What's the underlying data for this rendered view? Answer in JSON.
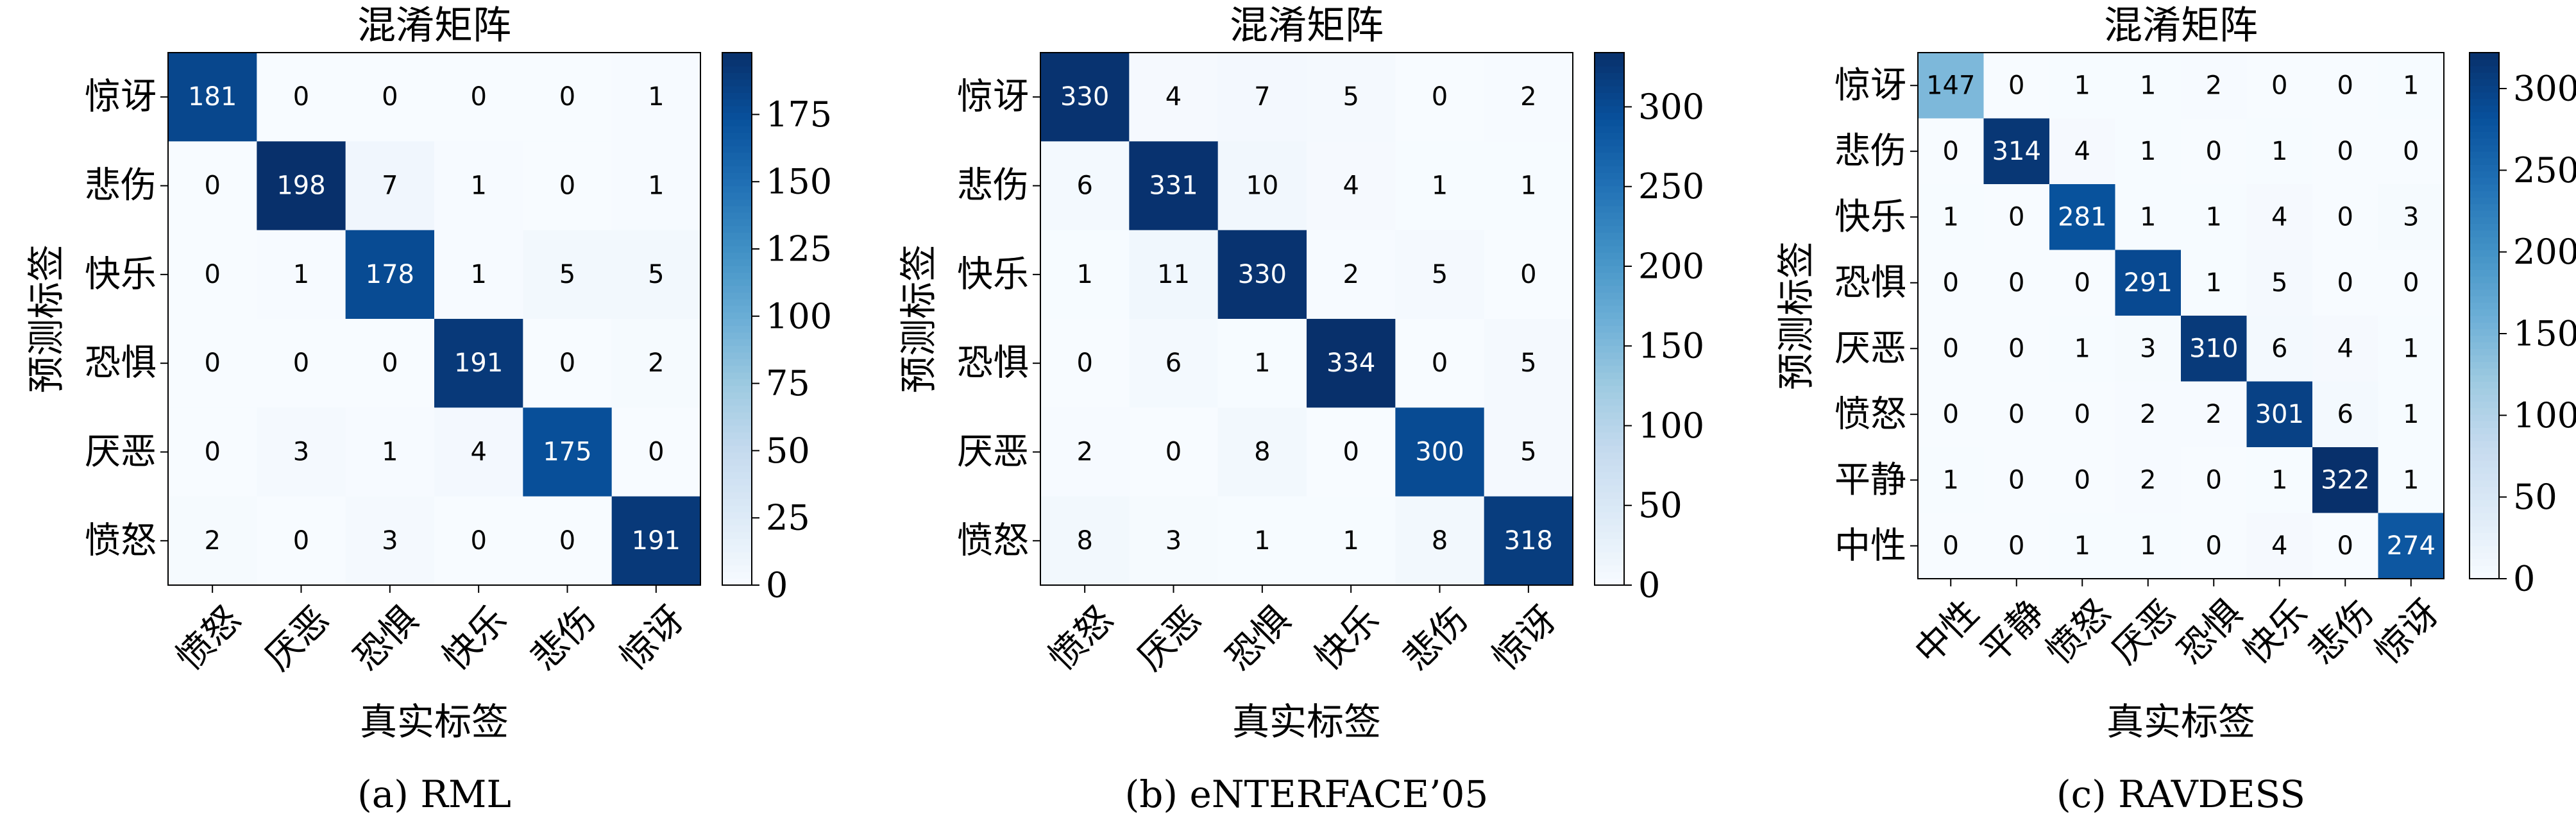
{
  "chart_data": [
    {
      "type": "heatmap",
      "title": "混淆矩阵",
      "xlabel": "真实标签",
      "ylabel": "预测标签",
      "caption": "(a) RML",
      "x_categories": [
        "愤怒",
        "厌恶",
        "恐惧",
        "快乐",
        "悲伤",
        "惊讶"
      ],
      "y_categories": [
        "惊讶",
        "悲伤",
        "快乐",
        "恐惧",
        "厌恶",
        "愤怒"
      ],
      "values": [
        [
          181,
          0,
          0,
          0,
          0,
          1
        ],
        [
          0,
          198,
          7,
          1,
          0,
          1
        ],
        [
          0,
          1,
          178,
          1,
          5,
          5
        ],
        [
          0,
          0,
          0,
          191,
          0,
          2
        ],
        [
          0,
          3,
          1,
          4,
          175,
          0
        ],
        [
          2,
          0,
          3,
          0,
          0,
          191
        ]
      ],
      "colorbar_range": [
        0,
        198
      ],
      "colorbar_ticks": [
        0,
        25,
        50,
        75,
        100,
        125,
        150,
        175
      ],
      "colormap": "Blues"
    },
    {
      "type": "heatmap",
      "title": "混淆矩阵",
      "xlabel": "真实标签",
      "ylabel": "预测标签",
      "caption": "(b) eNTERFACE’05",
      "x_categories": [
        "愤怒",
        "厌恶",
        "恐惧",
        "快乐",
        "悲伤",
        "惊讶"
      ],
      "y_categories": [
        "惊讶",
        "悲伤",
        "快乐",
        "恐惧",
        "厌恶",
        "愤怒"
      ],
      "values": [
        [
          330,
          4,
          7,
          5,
          0,
          2
        ],
        [
          6,
          331,
          10,
          4,
          1,
          1
        ],
        [
          1,
          11,
          330,
          2,
          5,
          0
        ],
        [
          0,
          6,
          1,
          334,
          0,
          5
        ],
        [
          2,
          0,
          8,
          0,
          300,
          5
        ],
        [
          8,
          3,
          1,
          1,
          8,
          318
        ]
      ],
      "colorbar_range": [
        0,
        334
      ],
      "colorbar_ticks": [
        0,
        50,
        100,
        150,
        200,
        250,
        300
      ],
      "colormap": "Blues"
    },
    {
      "type": "heatmap",
      "title": "混淆矩阵",
      "xlabel": "真实标签",
      "ylabel": "预测标签",
      "caption": "(c) RAVDESS",
      "x_categories": [
        "中性",
        "平静",
        "愤怒",
        "厌恶",
        "恐惧",
        "快乐",
        "悲伤",
        "惊讶"
      ],
      "y_categories": [
        "惊讶",
        "悲伤",
        "快乐",
        "恐惧",
        "厌恶",
        "愤怒",
        "平静",
        "中性"
      ],
      "values": [
        [
          147,
          0,
          1,
          1,
          2,
          0,
          0,
          1
        ],
        [
          0,
          314,
          4,
          1,
          0,
          1,
          0,
          0
        ],
        [
          1,
          0,
          281,
          1,
          1,
          4,
          0,
          3
        ],
        [
          0,
          0,
          0,
          291,
          1,
          5,
          0,
          0
        ],
        [
          0,
          0,
          1,
          3,
          310,
          6,
          4,
          1
        ],
        [
          0,
          0,
          0,
          2,
          2,
          301,
          6,
          1
        ],
        [
          1,
          0,
          0,
          2,
          0,
          1,
          322,
          1
        ],
        [
          0,
          0,
          1,
          1,
          0,
          4,
          0,
          274
        ]
      ],
      "colorbar_range": [
        0,
        322
      ],
      "colorbar_ticks": [
        0,
        50,
        100,
        150,
        200,
        250,
        300
      ],
      "colormap": "Blues"
    }
  ]
}
